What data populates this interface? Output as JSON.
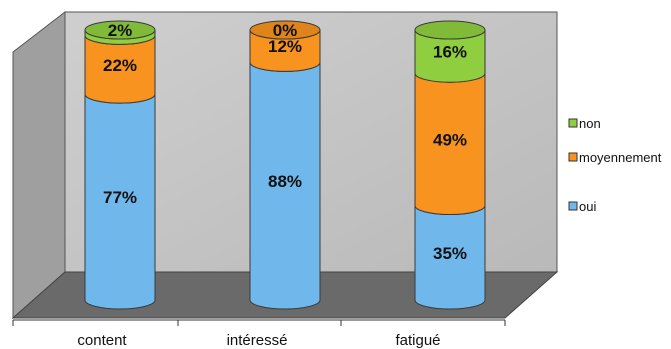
{
  "chart_data": {
    "type": "bar",
    "stacked": true,
    "categories": [
      "content",
      "intéressé",
      "fatigué"
    ],
    "series": [
      {
        "name": "oui",
        "color": "#70b7ec",
        "values": [
          77,
          88,
          35
        ],
        "labels": [
          "77%",
          "88%",
          "35%"
        ]
      },
      {
        "name": "moyennement",
        "color": "#f7931e",
        "values": [
          22,
          12,
          49
        ],
        "labels": [
          "22%",
          "12%",
          "49%"
        ]
      },
      {
        "name": "non",
        "color": "#8fcf3f",
        "values": [
          2,
          0,
          16
        ],
        "labels": [
          "2%",
          "0%",
          "16%"
        ]
      }
    ],
    "legend_order": [
      "non",
      "moyennement",
      "oui"
    ],
    "legend": "right",
    "ylim": [
      0,
      100
    ],
    "grid": false,
    "title": "",
    "xlabel": "",
    "ylabel": ""
  }
}
